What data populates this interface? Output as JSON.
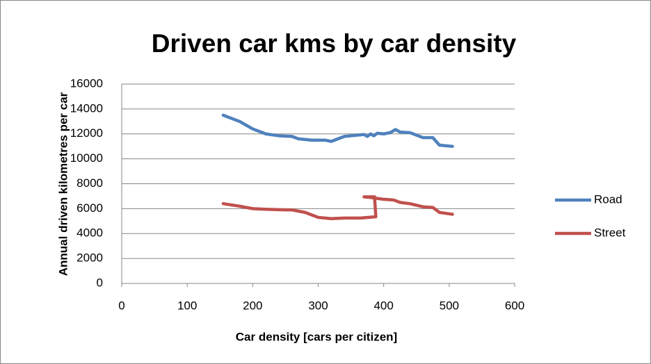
{
  "chart_data": {
    "type": "line",
    "title": "Driven car kms by car density",
    "x_label": "Car density [cars per citizen]",
    "y_label": "Annual driven kilometres per car",
    "xlim": [
      0,
      600
    ],
    "xticks": [
      0,
      100,
      200,
      300,
      400,
      500,
      600
    ],
    "ylim": [
      0,
      16000
    ],
    "yticks": [
      0,
      2000,
      4000,
      6000,
      8000,
      10000,
      12000,
      14000,
      16000
    ],
    "grid": true,
    "legend": "right",
    "series": [
      {
        "name": "Road",
        "color": "#4f81bd",
        "x": [
          155,
          180,
          200,
          220,
          240,
          260,
          270,
          290,
          310,
          320,
          340,
          360,
          370,
          375,
          380,
          385,
          390,
          400,
          410,
          418,
          425,
          440,
          460,
          475,
          485,
          505
        ],
        "values": [
          13500,
          13000,
          12400,
          12000,
          11850,
          11800,
          11600,
          11500,
          11500,
          11400,
          11800,
          11900,
          11950,
          11800,
          12000,
          11850,
          12050,
          12000,
          12100,
          12350,
          12150,
          12100,
          11700,
          11700,
          11100,
          11000
        ]
      },
      {
        "name": "Street",
        "color": "#c0504d",
        "x": [
          155,
          180,
          200,
          220,
          250,
          260,
          280,
          300,
          320,
          340,
          365,
          388,
          386,
          370,
          380,
          400,
          415,
          425,
          440,
          460,
          475,
          485,
          505
        ],
        "values": [
          6400,
          6200,
          6000,
          5950,
          5900,
          5900,
          5700,
          5300,
          5200,
          5250,
          5250,
          5350,
          6950,
          6950,
          6900,
          6750,
          6700,
          6500,
          6400,
          6150,
          6100,
          5700,
          5550
        ]
      }
    ]
  }
}
